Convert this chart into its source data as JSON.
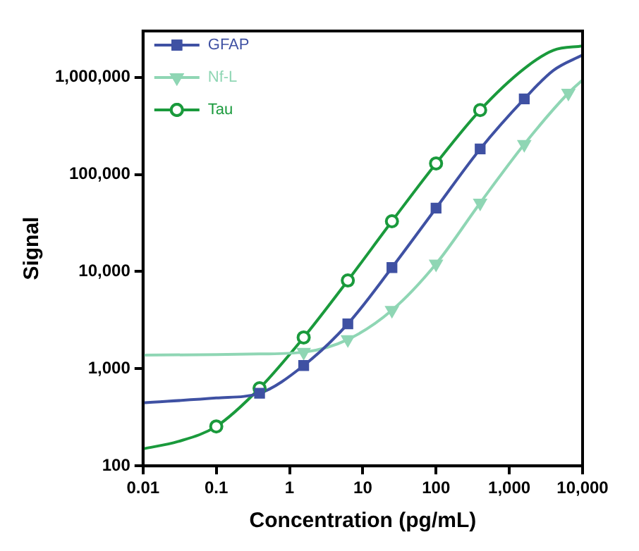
{
  "chart_data": {
    "type": "scatter",
    "xlabel": "Concentration (pg/mL)",
    "ylabel": "Signal",
    "log": "xy",
    "grid": false,
    "legend": "top left",
    "xlim": [
      0.01,
      10000
    ],
    "xticks": [
      0.01,
      0.1,
      1,
      10,
      100,
      {
        "value": 1000,
        "label": "1,000"
      },
      {
        "value": 10000,
        "label": "10,000"
      }
    ],
    "ylim": [
      100,
      3000000
    ],
    "yticks": [
      100,
      {
        "value": 1000,
        "label": "1,000"
      },
      {
        "value": 10000,
        "label": "10,000"
      },
      {
        "value": 100000,
        "label": "100,000"
      },
      {
        "value": 1000000,
        "label": "1,000,000"
      }
    ],
    "series": [
      {
        "type": "line",
        "marker": "none",
        "color": "#3f51a3",
        "x": [
          0.01,
          0.1,
          0.39,
          1.56,
          6.25,
          25,
          100,
          400,
          1600,
          4000,
          10000
        ],
        "values": [
          445,
          500,
          560,
          1080,
          2900,
          11000,
          45000,
          183000,
          600000,
          1180000,
          1700000
        ]
      },
      {
        "type": "line",
        "marker": "none",
        "color": "#8fd6b4",
        "x": [
          0.01,
          0.1,
          0.39,
          1.56,
          6.25,
          25,
          100,
          400,
          1600,
          6400,
          10000
        ],
        "values": [
          1380,
          1400,
          1420,
          1480,
          2000,
          4000,
          12000,
          51000,
          205000,
          690000,
          940000
        ]
      },
      {
        "type": "line",
        "marker": "none",
        "color": "#1a9a3c",
        "x": [
          0.01,
          0.03,
          0.1,
          0.39,
          1.56,
          6.25,
          25,
          100,
          400,
          1600,
          4000,
          10000
        ],
        "values": [
          150,
          178,
          255,
          630,
          2100,
          8100,
          33000,
          130000,
          460000,
          1230000,
          1900000,
          2100000
        ]
      },
      {
        "type": "scatter",
        "name": "GFAP",
        "marker": "square",
        "color": "#3f51a3",
        "x": [
          0.39,
          1.56,
          6.25,
          25,
          100,
          400,
          1600
        ],
        "values": [
          560,
          1080,
          2900,
          11000,
          45000,
          183000,
          600000
        ]
      },
      {
        "type": "scatter",
        "name": "Nf-L",
        "marker": "triangle",
        "color": "#8fd6b4",
        "x": [
          1.56,
          6.25,
          25,
          100,
          400,
          1600,
          6400
        ],
        "values": [
          1480,
          2000,
          4000,
          12000,
          51000,
          205000,
          690000
        ]
      },
      {
        "type": "scatter",
        "name": "Tau",
        "marker": "circle",
        "color": "#1a9a3c",
        "x": [
          0.1,
          0.39,
          1.56,
          6.25,
          25,
          100,
          400
        ],
        "values": [
          255,
          630,
          2100,
          8100,
          33000,
          130000,
          460000
        ]
      }
    ]
  }
}
